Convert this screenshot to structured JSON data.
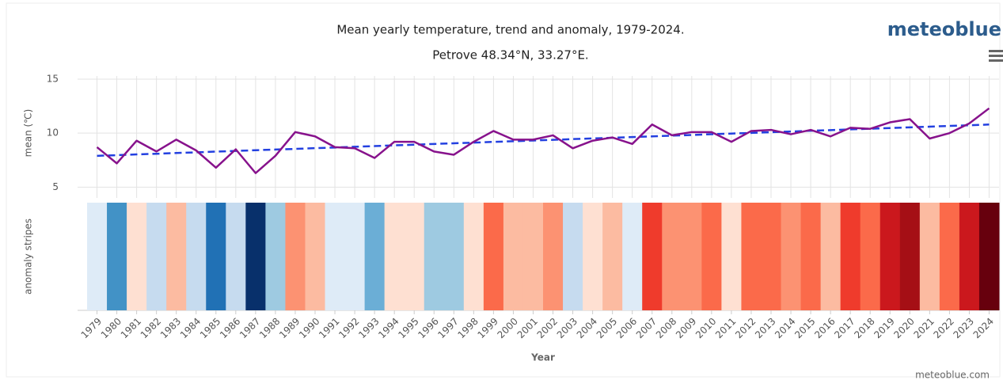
{
  "chart_data": {
    "type": "line",
    "title": "Mean yearly temperature, trend and anomaly, 1979-2024.",
    "subtitle": "Petrove 48.34°N, 33.27°E.",
    "brand": "meteoblue",
    "credit": "meteoblue.com",
    "y_label": "mean (℃)",
    "stripes_label": "anomaly stripes",
    "x_label": "Year",
    "categories": [
      "1979",
      "1980",
      "1981",
      "1982",
      "1983",
      "1984",
      "1985",
      "1986",
      "1987",
      "1988",
      "1989",
      "1990",
      "1991",
      "1992",
      "1993",
      "1994",
      "1995",
      "1996",
      "1997",
      "1998",
      "1999",
      "2000",
      "2001",
      "2002",
      "2003",
      "2004",
      "2005",
      "2006",
      "2007",
      "2008",
      "2009",
      "2010",
      "2011",
      "2012",
      "2013",
      "2014",
      "2015",
      "2016",
      "2017",
      "2018",
      "2019",
      "2020",
      "2021",
      "2022",
      "2023",
      "2024"
    ],
    "series": [
      {
        "color": "#87128c",
        "values": [
          8.7,
          7.2,
          9.3,
          8.3,
          9.4,
          8.4,
          6.8,
          8.5,
          6.3,
          7.9,
          10.1,
          9.7,
          8.7,
          8.6,
          7.7,
          9.2,
          9.2,
          8.3,
          8.0,
          9.2,
          10.2,
          9.4,
          9.4,
          9.8,
          8.6,
          9.3,
          9.6,
          9.0,
          10.8,
          9.8,
          10.1,
          10.1,
          9.2,
          10.2,
          10.3,
          9.9,
          10.3,
          9.7,
          10.5,
          10.4,
          11.0,
          11.3,
          9.5,
          10.0,
          10.9,
          12.3
        ]
      },
      {
        "color": "#2340e0",
        "dashed": true,
        "values": [
          7.9,
          7.96,
          8.03,
          8.09,
          8.16,
          8.22,
          8.29,
          8.35,
          8.42,
          8.48,
          8.54,
          8.61,
          8.67,
          8.74,
          8.8,
          8.87,
          8.93,
          9.0,
          9.06,
          9.12,
          9.19,
          9.25,
          9.32,
          9.38,
          9.45,
          9.51,
          9.57,
          9.64,
          9.7,
          9.77,
          9.83,
          9.9,
          9.96,
          10.02,
          10.09,
          10.15,
          10.22,
          10.28,
          10.35,
          10.41,
          10.47,
          10.54,
          10.6,
          10.67,
          10.73,
          10.8
        ]
      }
    ],
    "stripe_colors": [
      "#deebf7",
      "#4292c6",
      "#fee0d2",
      "#c6dbef",
      "#fcbba1",
      "#c6dbef",
      "#2171b5",
      "#c6dbef",
      "#08306b",
      "#9ecae1",
      "#fc9272",
      "#fcbba1",
      "#deebf7",
      "#deebf7",
      "#6baed6",
      "#fee0d2",
      "#fee0d2",
      "#9ecae1",
      "#9ecae1",
      "#fee0d2",
      "#fb6a4a",
      "#fcbba1",
      "#fcbba1",
      "#fc9272",
      "#c6dbef",
      "#fee0d2",
      "#fcbba1",
      "#deebf7",
      "#ef3b2c",
      "#fc9272",
      "#fc9272",
      "#fb6a4a",
      "#fee0d2",
      "#fb6a4a",
      "#fb6a4a",
      "#fc9272",
      "#fb6a4a",
      "#fcbba1",
      "#ef3b2c",
      "#fb6a4a",
      "#cb181d",
      "#a50f15",
      "#fcbba1",
      "#fb6a4a",
      "#cb181d",
      "#67000d"
    ],
    "ylim": [
      4,
      15
    ],
    "yticks": [
      5,
      10,
      15
    ],
    "grid": true
  }
}
